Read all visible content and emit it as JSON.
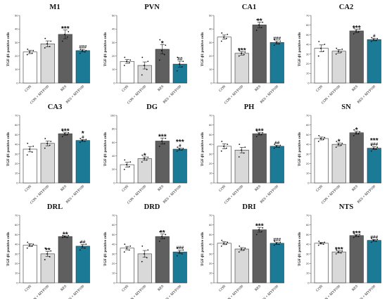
{
  "ylabel": "TGF-β1 positive cells",
  "categories": [
    "CON",
    "CON + MYP100",
    "RES",
    "RES + MYP100"
  ],
  "colors": [
    "#ffffff",
    "#d9d9d9",
    "#5f5f5f",
    "#1b7a96"
  ],
  "chart_data": [
    {
      "type": "bar",
      "title": "M1",
      "ylim": [
        0,
        50
      ],
      "ticks": [
        0,
        10,
        20,
        30,
        40,
        50
      ],
      "values": [
        23,
        29,
        36,
        24
      ],
      "errors": [
        1.2,
        2.2,
        3.2,
        1.0
      ],
      "points": [
        [
          21,
          22,
          23,
          24,
          25
        ],
        [
          26,
          27,
          29,
          31,
          33
        ],
        [
          31,
          34,
          36,
          38,
          41
        ],
        [
          22,
          23,
          24,
          24,
          25
        ]
      ],
      "sig_star": [
        "",
        "",
        "***",
        ""
      ],
      "sig_hash": [
        "",
        "",
        "",
        "###"
      ]
    },
    {
      "type": "bar",
      "title": "PVN",
      "ylim": [
        0,
        50
      ],
      "ticks": [
        0,
        10,
        20,
        30,
        40,
        50
      ],
      "values": [
        16,
        13,
        25,
        14
      ],
      "errors": [
        1.4,
        2.6,
        3.5,
        2.2
      ],
      "points": [
        [
          13,
          15,
          16,
          17,
          19
        ],
        [
          6,
          10,
          13,
          16,
          19
        ],
        [
          17,
          21,
          24,
          28,
          32
        ],
        [
          9,
          12,
          14,
          16,
          19
        ]
      ],
      "sig_star": [
        "",
        "",
        "*",
        ""
      ],
      "sig_hash": [
        "",
        "",
        "",
        "##"
      ]
    },
    {
      "type": "bar",
      "title": "CA1",
      "ylim": [
        0,
        50
      ],
      "ticks": [
        0,
        10,
        20,
        30,
        40,
        50
      ],
      "values": [
        34,
        22,
        43,
        30
      ],
      "errors": [
        1.5,
        1.3,
        2.0,
        1.2
      ],
      "points": [
        [
          31,
          33,
          34,
          36,
          37
        ],
        [
          20,
          21,
          22,
          23,
          24
        ],
        [
          39,
          41,
          43,
          45,
          47
        ],
        [
          28,
          29,
          30,
          31,
          32
        ]
      ],
      "sig_star": [
        "",
        "***",
        "**",
        ""
      ],
      "sig_hash": [
        "",
        "",
        "",
        "###"
      ]
    },
    {
      "type": "bar",
      "title": "CA2",
      "ylim": [
        0,
        70
      ],
      "ticks": [
        0,
        10,
        20,
        30,
        40,
        50,
        60,
        70
      ],
      "values": [
        36,
        33,
        54,
        45
      ],
      "errors": [
        3.5,
        1.8,
        1.8,
        1.2
      ],
      "points": [
        [
          28,
          33,
          36,
          40,
          43
        ],
        [
          30,
          32,
          33,
          35,
          36
        ],
        [
          51,
          53,
          54,
          56,
          57
        ],
        [
          43,
          44,
          45,
          46,
          47
        ]
      ],
      "sig_star": [
        "",
        "",
        "***",
        ""
      ],
      "sig_hash": [
        "",
        "",
        "",
        "#"
      ]
    },
    {
      "type": "bar",
      "title": "CA3",
      "ylim": [
        0,
        70
      ],
      "ticks": [
        0,
        10,
        20,
        30,
        40,
        50,
        60,
        70
      ],
      "values": [
        35,
        41,
        51,
        44
      ],
      "errors": [
        2.8,
        2.5,
        1.5,
        1.0
      ],
      "points": [
        [
          29,
          32,
          35,
          38,
          41
        ],
        [
          36,
          39,
          41,
          43,
          46
        ],
        [
          48,
          50,
          51,
          52,
          54
        ],
        [
          42,
          43,
          44,
          45,
          46
        ]
      ],
      "sig_star": [
        "",
        "",
        "***",
        "*"
      ],
      "sig_hash": [
        "",
        "",
        "",
        "#"
      ]
    },
    {
      "type": "bar",
      "title": "DG",
      "ylim": [
        0,
        100
      ],
      "ticks": [
        0,
        20,
        40,
        60,
        80,
        100
      ],
      "values": [
        27,
        36,
        62,
        50
      ],
      "errors": [
        3.5,
        2.5,
        4.5,
        1.5
      ],
      "points": [
        [
          20,
          24,
          27,
          31,
          34
        ],
        [
          31,
          34,
          36,
          38,
          41
        ],
        [
          54,
          58,
          62,
          66,
          70
        ],
        [
          47,
          49,
          50,
          51,
          53
        ]
      ],
      "sig_star": [
        "",
        "*",
        "***",
        "***"
      ],
      "sig_hash": [
        "",
        "",
        "",
        "#"
      ]
    },
    {
      "type": "bar",
      "title": "PH",
      "ylim": [
        0,
        70
      ],
      "ticks": [
        0,
        10,
        20,
        30,
        40,
        50,
        60,
        70
      ],
      "values": [
        38,
        34,
        51,
        38
      ],
      "errors": [
        2.5,
        2.8,
        1.4,
        1.0
      ],
      "points": [
        [
          33,
          36,
          38,
          40,
          43
        ],
        [
          27,
          31,
          34,
          37,
          40
        ],
        [
          48,
          50,
          51,
          52,
          54
        ],
        [
          36,
          37,
          38,
          39,
          40
        ]
      ],
      "sig_star": [
        "",
        "",
        "***",
        ""
      ],
      "sig_hash": [
        "",
        "",
        "",
        "##"
      ]
    },
    {
      "type": "bar",
      "title": "SN",
      "ylim": [
        0,
        70
      ],
      "ticks": [
        0,
        10,
        20,
        30,
        40,
        50,
        60,
        70
      ],
      "values": [
        46,
        40,
        52,
        36
      ],
      "errors": [
        1.5,
        1.5,
        1.5,
        1.5
      ],
      "points": [
        [
          43,
          45,
          46,
          47,
          49
        ],
        [
          37,
          39,
          40,
          41,
          43
        ],
        [
          49,
          51,
          52,
          53,
          55
        ],
        [
          33,
          35,
          36,
          37,
          39
        ]
      ],
      "sig_star": [
        "",
        "*",
        "*",
        "***"
      ],
      "sig_hash": [
        "",
        "",
        "",
        "###"
      ]
    },
    {
      "type": "bar",
      "title": "DRL",
      "ylim": [
        0,
        70
      ],
      "ticks": [
        0,
        10,
        20,
        30,
        40,
        50,
        60,
        70
      ],
      "values": [
        39,
        30,
        48,
        38
      ],
      "errors": [
        1.5,
        2.5,
        0.8,
        1.8
      ],
      "points": [
        [
          36,
          38,
          39,
          40,
          42
        ],
        [
          24,
          27,
          30,
          33,
          36
        ],
        [
          47,
          47,
          48,
          49,
          49
        ],
        [
          34,
          36,
          38,
          40,
          42
        ]
      ],
      "sig_star": [
        "",
        "**",
        "**",
        ""
      ],
      "sig_hash": [
        "",
        "",
        "",
        "##"
      ]
    },
    {
      "type": "bar",
      "title": "DRD",
      "ylim": [
        0,
        70
      ],
      "ticks": [
        0,
        10,
        20,
        30,
        40,
        50,
        60,
        70
      ],
      "values": [
        36,
        30,
        48,
        32
      ],
      "errors": [
        1.8,
        3.5,
        2.5,
        1.8
      ],
      "points": [
        [
          32,
          34,
          36,
          38,
          40
        ],
        [
          22,
          26,
          30,
          34,
          38
        ],
        [
          43,
          46,
          48,
          50,
          53
        ],
        [
          28,
          30,
          32,
          34,
          36
        ]
      ],
      "sig_star": [
        "",
        "",
        "**",
        ""
      ],
      "sig_hash": [
        "",
        "",
        "",
        "###"
      ]
    },
    {
      "type": "bar",
      "title": "DRI",
      "ylim": [
        0,
        70
      ],
      "ticks": [
        0,
        10,
        20,
        30,
        40,
        50,
        60,
        70
      ],
      "values": [
        41,
        35,
        55,
        41
      ],
      "errors": [
        1.5,
        1.5,
        2.5,
        1.2
      ],
      "points": [
        [
          38,
          40,
          41,
          42,
          44
        ],
        [
          32,
          34,
          35,
          36,
          38
        ],
        [
          50,
          53,
          55,
          57,
          60
        ],
        [
          39,
          40,
          41,
          42,
          43
        ]
      ],
      "sig_star": [
        "",
        "",
        "***",
        ""
      ],
      "sig_hash": [
        "",
        "",
        "",
        "###"
      ]
    },
    {
      "type": "bar",
      "title": "NTS",
      "ylim": [
        0,
        70
      ],
      "ticks": [
        0,
        10,
        20,
        30,
        40,
        50,
        60,
        70
      ],
      "values": [
        41,
        32,
        49,
        44
      ],
      "errors": [
        0.8,
        1.0,
        1.0,
        1.0
      ],
      "points": [
        [
          39,
          40,
          41,
          42,
          43
        ],
        [
          30,
          31,
          32,
          33,
          34
        ],
        [
          47,
          48,
          49,
          50,
          51
        ],
        [
          42,
          43,
          44,
          45,
          46
        ]
      ],
      "sig_star": [
        "",
        "***",
        "***",
        ""
      ],
      "sig_hash": [
        "",
        "",
        "",
        "###"
      ]
    }
  ]
}
